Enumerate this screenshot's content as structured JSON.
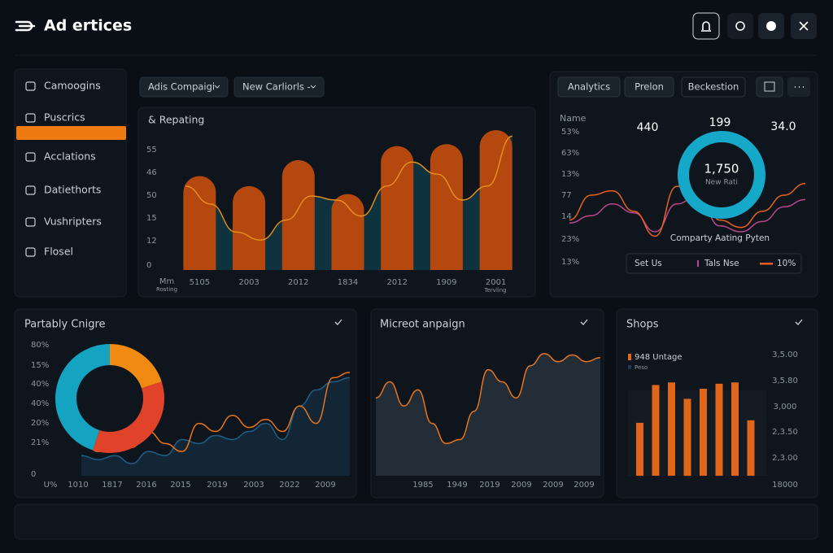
{
  "header": {
    "title": "Ad ertices"
  },
  "sidebar": {
    "items": [
      "Camoogins",
      "Puscrics",
      "Acclations",
      "Datiethorts",
      "Vushripters",
      "Flosel"
    ]
  },
  "toolbar": {
    "dropdowns": [
      "Adis Compaigi",
      "New Carliorls -"
    ],
    "buttons": [
      "Analytics",
      "Prelon",
      "Beckestion"
    ]
  },
  "reporting": {
    "title": "& Repating",
    "y_labels": [
      "55",
      "46",
      "50",
      "15",
      "12",
      "0"
    ],
    "x_axis_label": "Mm",
    "x_axis_sublabel": "Rosting",
    "end_sublabel": "Tervling",
    "chart_data": {
      "type": "bar",
      "categories": [
        "5105",
        "2003",
        "2012",
        "1834",
        "2012",
        "1909",
        "2001"
      ],
      "values": [
        47,
        42,
        55,
        38,
        62,
        63,
        70
      ],
      "color": "#b5480f",
      "ylim": [
        0,
        70
      ],
      "line": {
        "color": "#e8921c",
        "area_color": "#0f3a48",
        "values": [
          42,
          33,
          19,
          15,
          25,
          37,
          35,
          27,
          42,
          54,
          48,
          35,
          42,
          67
        ]
      }
    }
  },
  "summary": {
    "name_label": "Name",
    "stats": [
      "440",
      "199",
      "34.0"
    ],
    "y_labels": [
      "53%",
      "63%",
      "13%",
      "77",
      "14",
      "23%",
      "13%"
    ],
    "donut_value": "1,750",
    "donut_label": "New Rati",
    "caption": "Comparty Aating Pyten",
    "legend_label": "Set Us",
    "chart_data": {
      "type": "line",
      "ylim": [
        0,
        100
      ],
      "series": [
        {
          "name": "Tals Nse",
          "color": "#b9478a",
          "values": [
            31,
            36,
            44,
            38,
            25,
            44,
            50,
            29,
            25,
            32,
            42,
            47
          ]
        },
        {
          "name": "10%",
          "color": "#e8621c",
          "values": [
            33,
            50,
            53,
            39,
            22,
            56,
            64,
            33,
            28,
            39,
            50,
            58
          ]
        }
      ]
    }
  },
  "partability": {
    "title": "Partably Cnigre",
    "y_labels": [
      "80%",
      "15%",
      "40%",
      "40%",
      "20%",
      "21%",
      "0"
    ],
    "x_labels": [
      "U%",
      "1010",
      "1817",
      "2016",
      "2015",
      "2019",
      "2003",
      "2022",
      "2009"
    ],
    "donut": {
      "type": "pie",
      "values": [
        20,
        35,
        45
      ],
      "colors": [
        "#f08a12",
        "#e0432a",
        "#14a3c0"
      ]
    },
    "chart_data": {
      "type": "line",
      "ylim": [
        0,
        100
      ],
      "series": [
        {
          "color": "#1f5f86",
          "values": [
            15,
            12,
            15,
            9,
            18,
            15,
            27,
            24,
            30,
            27,
            33,
            39,
            27,
            52,
            64,
            70,
            73
          ]
        },
        {
          "color": "#e8741c",
          "values": [
            27,
            18,
            24,
            21,
            33,
            24,
            18,
            39,
            33,
            45,
            36,
            42,
            33,
            52,
            39,
            73,
            77
          ]
        }
      ]
    }
  },
  "campaign": {
    "title": "Micreot anpaign",
    "x_labels": [
      "1985",
      "1949",
      "2019",
      "2009",
      "2009",
      "2009"
    ],
    "chart_data": {
      "type": "area",
      "ylim": [
        0,
        100
      ],
      "color": "#e8741c",
      "values": [
        58,
        70,
        52,
        64,
        39,
        24,
        27,
        48,
        79,
        70,
        58,
        82,
        91,
        85,
        90,
        85,
        88
      ]
    }
  },
  "shops": {
    "title": "Shops",
    "legend": [
      "948 Untage",
      "Peso"
    ],
    "y_labels": [
      "3,5.00",
      "3,5.80",
      "3,000",
      "2,3.50",
      "2,3.00",
      "18000"
    ],
    "chart_data": {
      "type": "bar",
      "ylim": [
        0,
        100
      ],
      "color": "#df661a",
      "values": [
        42,
        72,
        74,
        61,
        69,
        73,
        74,
        44
      ]
    }
  }
}
